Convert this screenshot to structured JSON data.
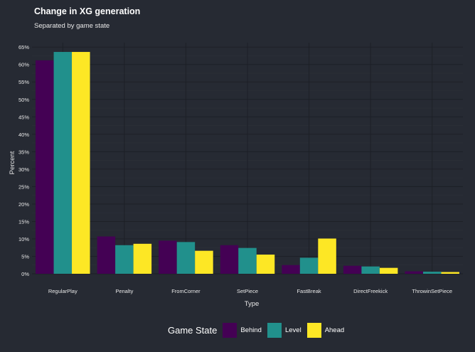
{
  "chart_data": {
    "type": "bar",
    "title": "Change in XG generation",
    "subtitle": "Separated by game state",
    "xlabel": "Type",
    "ylabel": "Percent",
    "ylim": [
      0,
      66
    ],
    "yticks": [
      "0%",
      "5%",
      "10%",
      "15%",
      "20%",
      "25%",
      "30%",
      "35%",
      "40%",
      "45%",
      "50%",
      "55%",
      "60%",
      "65%"
    ],
    "categories": [
      "RegularPlay",
      "Penalty",
      "FromCorner",
      "SetPiece",
      "FastBreak",
      "DirectFreekick",
      "ThrowinSetPiece"
    ],
    "legend_title": "Game State",
    "legend_position": "bottom",
    "grid": true,
    "series": [
      {
        "name": "Behind",
        "color": "#440154",
        "values": [
          61.2,
          10.7,
          9.5,
          8.2,
          2.5,
          2.3,
          0.7
        ]
      },
      {
        "name": "Level",
        "color": "#21908c",
        "values": [
          63.6,
          8.2,
          9.1,
          7.4,
          4.6,
          2.1,
          0.6
        ]
      },
      {
        "name": "Ahead",
        "color": "#fde725",
        "values": [
          63.6,
          8.6,
          6.6,
          5.5,
          10.1,
          1.7,
          0.5
        ]
      }
    ]
  }
}
